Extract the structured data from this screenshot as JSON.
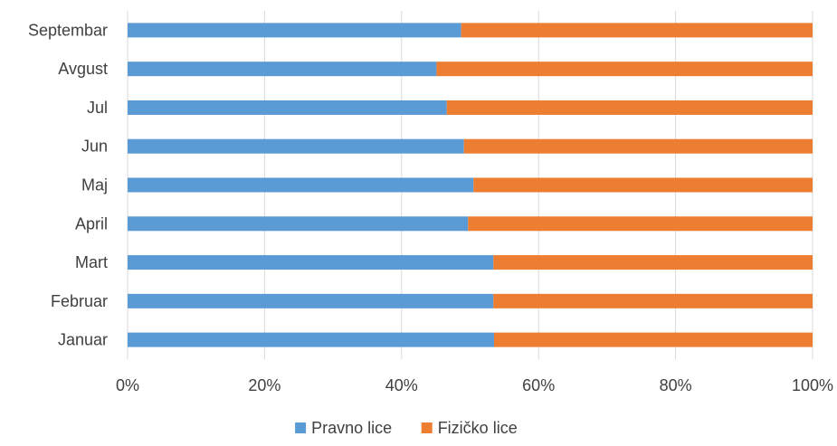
{
  "chart_data": {
    "type": "bar",
    "orientation": "horizontal",
    "stacked": "percent",
    "categories": [
      "Januar",
      "Februar",
      "Mart",
      "April",
      "Maj",
      "Jun",
      "Jul",
      "Avgust",
      "Septembar"
    ],
    "series": [
      {
        "name": "Pravno lice",
        "color": "#5B9BD5",
        "values": [
          53.5,
          53.4,
          53.4,
          49.7,
          50.5,
          49.1,
          46.6,
          45.1,
          48.7
        ]
      },
      {
        "name": "Fizičko lice",
        "color": "#ED7D31",
        "values": [
          46.5,
          46.6,
          46.6,
          50.3,
          49.5,
          50.9,
          53.4,
          54.9,
          51.3
        ]
      }
    ],
    "xlim": [
      0,
      100
    ],
    "x_ticks": [
      "0%",
      "20%",
      "40%",
      "60%",
      "80%",
      "100%"
    ],
    "grid": "vertical",
    "legend_position": "bottom"
  }
}
